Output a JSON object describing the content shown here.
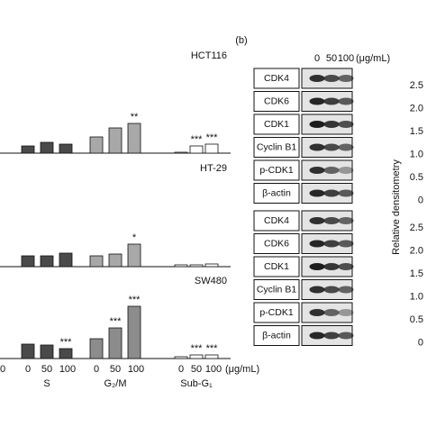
{
  "chart_data": [
    {
      "type": "bar",
      "title": "HCT116",
      "ylim": [
        0,
        100
      ],
      "series": [
        {
          "color": "#4a4a4a",
          "values": [
            8,
            12,
            10
          ],
          "marks": [
            null,
            null,
            null
          ]
        },
        {
          "color": "#a8a8a8",
          "values": [
            18,
            28,
            33
          ],
          "marks": [
            null,
            null,
            "**"
          ]
        },
        {
          "color": "#ffffff",
          "values": [
            1,
            8,
            10
          ],
          "marks": [
            null,
            "***",
            "***"
          ]
        }
      ]
    },
    {
      "type": "bar",
      "title": "HT-29",
      "ylim": [
        0,
        100
      ],
      "series": [
        {
          "color": "#4a4a4a",
          "values": [
            12,
            12,
            15
          ],
          "marks": [
            null,
            null,
            null
          ]
        },
        {
          "color": "#a8a8a8",
          "values": [
            12,
            14,
            25
          ],
          "marks": [
            null,
            null,
            "*"
          ]
        },
        {
          "color": "#ffffff",
          "values": [
            2,
            2,
            3
          ],
          "marks": [
            null,
            null,
            null
          ]
        }
      ]
    },
    {
      "type": "bar",
      "title": "SW480",
      "ylim": [
        0,
        100
      ],
      "series": [
        {
          "color": "#4a4a4a",
          "values": [
            16,
            15,
            11
          ],
          "marks": [
            null,
            null,
            "***"
          ]
        },
        {
          "color": "#8c8c8c",
          "values": [
            22,
            34,
            58
          ],
          "marks": [
            null,
            "***",
            "***"
          ]
        },
        {
          "color": "#ffffff",
          "values": [
            2,
            4,
            4
          ],
          "marks": [
            null,
            "***",
            "***"
          ]
        }
      ]
    }
  ],
  "x_axis": {
    "cropped_label": "0",
    "doses": [
      "0",
      "50",
      "100"
    ],
    "groups": [
      "S",
      "G₂/M",
      "Sub-G₁"
    ],
    "unit": "(μg/mL)"
  },
  "panel_b": {
    "label": "(b)",
    "dose_header": [
      "0",
      "50",
      "100",
      "(μg/mL)"
    ],
    "blot_sets": [
      {
        "rows": [
          "CDK4",
          "CDK6",
          "CDK1",
          "Cyclin B1",
          "p-CDK1",
          "β-actin"
        ]
      },
      {
        "rows": [
          "CDK4",
          "CDK6",
          "CDK1",
          "Cyclin B1",
          "p-CDK1",
          "β-actin"
        ]
      }
    ],
    "density_axis": {
      "label": "Relative densitometry",
      "ticks": [
        [
          "2.5",
          "2.0",
          "1.5",
          "1.0",
          "0.5",
          "0"
        ],
        [
          "2.5",
          "2.0",
          "1.5",
          "1.0",
          "0.5",
          "0"
        ]
      ]
    }
  }
}
